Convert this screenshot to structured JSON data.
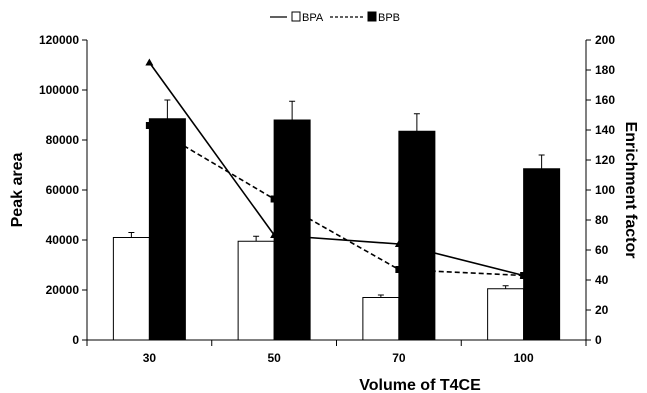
{
  "chart_data": {
    "type": "bar",
    "categories": [
      "30",
      "50",
      "70",
      "100"
    ],
    "xlabel": "Volume of T4CE",
    "ylabel": "Peak area",
    "y2label": "Enrichment factor",
    "ylim": [
      0,
      120000
    ],
    "y2lim": [
      0,
      200
    ],
    "y_ticks": [
      "0",
      "20000",
      "40000",
      "60000",
      "80000",
      "100000",
      "120000"
    ],
    "y2_ticks": [
      "0",
      "20",
      "40",
      "60",
      "80",
      "100",
      "120",
      "140",
      "160",
      "180",
      "200"
    ],
    "grid": false,
    "legend": {
      "position": "top-center",
      "entries": [
        "BPA",
        "BPB"
      ]
    },
    "series": [
      {
        "name": "BPA",
        "kind": "bar",
        "axis": "left",
        "color": "#ffffff",
        "values": [
          41000,
          39500,
          17000,
          20500
        ],
        "errors": [
          2000,
          2000,
          1000,
          1200
        ]
      },
      {
        "name": "BPB",
        "kind": "bar",
        "axis": "left",
        "color": "#000000",
        "values": [
          88500,
          88000,
          83500,
          68500
        ],
        "errors": [
          7500,
          7500,
          7000,
          5500
        ]
      },
      {
        "name": "BPA",
        "kind": "line",
        "axis": "right",
        "style": "solid",
        "marker": "triangle",
        "values": [
          185,
          70,
          64,
          43
        ]
      },
      {
        "name": "BPB",
        "kind": "line",
        "axis": "right",
        "style": "dashed",
        "marker": "square",
        "values": [
          143,
          94,
          47,
          43
        ]
      }
    ]
  }
}
